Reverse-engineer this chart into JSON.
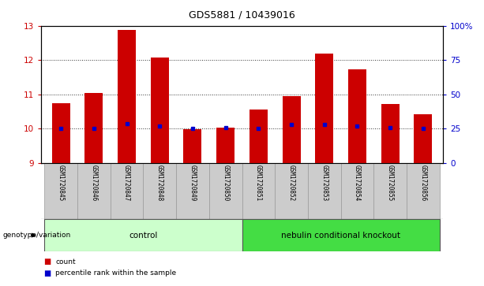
{
  "title": "GDS5881 / 10439016",
  "samples": [
    "GSM1720845",
    "GSM1720846",
    "GSM1720847",
    "GSM1720848",
    "GSM1720849",
    "GSM1720850",
    "GSM1720851",
    "GSM1720852",
    "GSM1720853",
    "GSM1720854",
    "GSM1720855",
    "GSM1720856"
  ],
  "bar_heights": [
    10.75,
    11.05,
    12.88,
    12.08,
    9.98,
    10.02,
    10.55,
    10.95,
    12.18,
    11.72,
    10.72,
    10.42
  ],
  "blue_markers": [
    10.0,
    10.0,
    10.15,
    10.08,
    10.0,
    10.02,
    10.0,
    10.12,
    10.12,
    10.08,
    10.02,
    10.0
  ],
  "bar_bottom": 9.0,
  "ylim_left": [
    9,
    13
  ],
  "yticks_left": [
    9,
    10,
    11,
    12,
    13
  ],
  "ylim_right": [
    0,
    100
  ],
  "yticks_right": [
    0,
    25,
    50,
    75,
    100
  ],
  "yticklabels_right": [
    "0",
    "25",
    "50",
    "75",
    "100%"
  ],
  "bar_color": "#cc0000",
  "marker_color": "#0000cc",
  "bar_width": 0.55,
  "grid_color": "#000000",
  "groups": [
    {
      "label": "control",
      "start": 0,
      "end": 6,
      "color": "#ccffcc"
    },
    {
      "label": "nebulin conditional knockout",
      "start": 6,
      "end": 12,
      "color": "#44dd44"
    }
  ],
  "genotype_label": "genotype/variation",
  "legend_items": [
    {
      "label": "count",
      "color": "#cc0000"
    },
    {
      "label": "percentile rank within the sample",
      "color": "#0000cc"
    }
  ],
  "tick_color_left": "#cc0000",
  "tick_color_right": "#0000cc",
  "bg_color": "#ffffff",
  "plot_bg": "#ffffff",
  "sample_box_color": "#cccccc",
  "sample_box_edge": "#999999"
}
